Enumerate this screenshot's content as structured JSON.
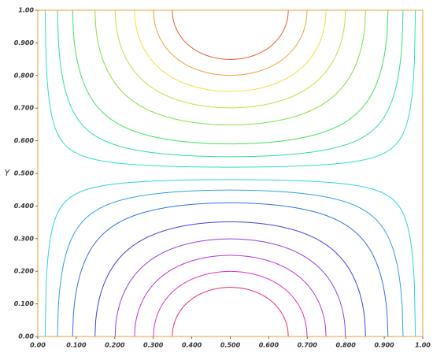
{
  "chart_data": {
    "type": "contour",
    "y_label": "Y",
    "xlim": [
      0,
      1
    ],
    "ylim": [
      0,
      1
    ],
    "xticks": [
      {
        "value": 0,
        "label": "0.00"
      },
      {
        "value": 0.1,
        "label": "0.100"
      },
      {
        "value": 0.2,
        "label": "0.200"
      },
      {
        "value": 0.3,
        "label": "0.300"
      },
      {
        "value": 0.4,
        "label": "0.400"
      },
      {
        "value": 0.5,
        "label": "0.500"
      },
      {
        "value": 0.6,
        "label": "0.600"
      },
      {
        "value": 0.7,
        "label": "0.700"
      },
      {
        "value": 0.8,
        "label": "0.800"
      },
      {
        "value": 0.9,
        "label": "0.900"
      },
      {
        "value": 1,
        "label": "1.00"
      }
    ],
    "yticks": [
      {
        "value": 0,
        "label": "0.00"
      },
      {
        "value": 0.1,
        "label": "0.100"
      },
      {
        "value": 0.2,
        "label": "0.200"
      },
      {
        "value": 0.3,
        "label": "0.300"
      },
      {
        "value": 0.4,
        "label": "0.400"
      },
      {
        "value": 0.5,
        "label": "0.500"
      },
      {
        "value": 0.6,
        "label": "0.600"
      },
      {
        "value": 0.7,
        "label": "0.700"
      },
      {
        "value": 0.8,
        "label": "0.800"
      },
      {
        "value": 0.9,
        "label": "0.900"
      },
      {
        "value": 1,
        "label": "1.00"
      }
    ],
    "levels": [
      -0.89,
      -0.81,
      -0.71,
      -0.59,
      -0.45,
      -0.28,
      -0.16,
      -0.06,
      0.06,
      0.16,
      0.28,
      0.45,
      0.59,
      0.71,
      0.81,
      0.89
    ],
    "colors": [
      "#e8306a",
      "#e030c0",
      "#c030e0",
      "#9040e8",
      "#4040e0",
      "#3070e8",
      "#30a0e8",
      "#30d0e0",
      "#30e0c0",
      "#30e090",
      "#40e060",
      "#80e040",
      "#c0e040",
      "#f0e040",
      "#f0a030",
      "#e06030"
    ],
    "frame_color": "#e8a030"
  }
}
